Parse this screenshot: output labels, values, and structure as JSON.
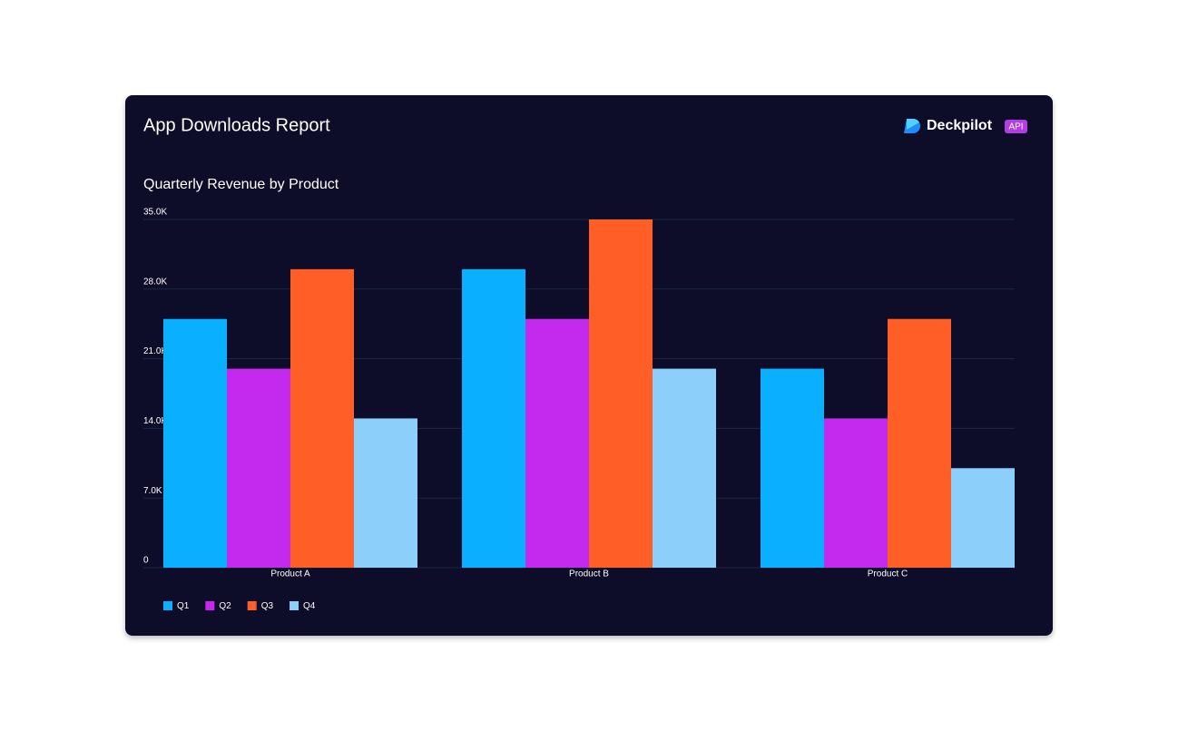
{
  "header": {
    "title": "App Downloads Report",
    "brand": "Deckpilot",
    "badge": "API"
  },
  "chart_data": {
    "type": "bar",
    "title": "Quarterly Revenue by Product",
    "categories": [
      "Product A",
      "Product B",
      "Product C"
    ],
    "series": [
      {
        "name": "Q1",
        "color": "#0ab0ff",
        "values": [
          25000,
          30000,
          20000
        ]
      },
      {
        "name": "Q2",
        "color": "#c42aee",
        "values": [
          20000,
          25000,
          15000
        ]
      },
      {
        "name": "Q3",
        "color": "#ff5f26",
        "values": [
          30000,
          35000,
          25000
        ]
      },
      {
        "name": "Q4",
        "color": "#8ccffb",
        "values": [
          15000,
          20000,
          10000
        ]
      }
    ],
    "ylim": [
      0,
      35000
    ],
    "yticks": [
      0,
      {
        "value": 7000,
        "label": "7.0K"
      },
      {
        "value": 14000,
        "label": "14.0K"
      },
      {
        "value": 21000,
        "label": "21.0K"
      },
      {
        "value": 28000,
        "label": "28.0K"
      },
      {
        "value": 35000,
        "label": "35.0K"
      }
    ],
    "grid": true,
    "legend": "bottom-left"
  }
}
